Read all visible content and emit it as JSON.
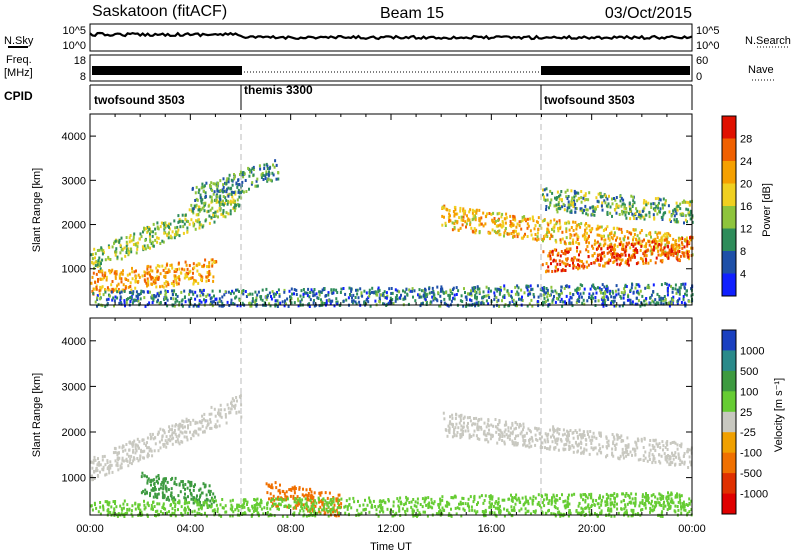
{
  "header": {
    "station": "Saskatoon (fitACF)",
    "beam": "Beam 15",
    "date": "03/Oct/2015"
  },
  "noise_panel": {
    "left_label": "N.Sky",
    "right_label": "N.Search",
    "left_ticks": [
      "10^5",
      "10^0"
    ],
    "right_ticks": [
      "10^5",
      "10^0"
    ]
  },
  "freq_panel": {
    "left_label_1": "Freq.",
    "left_label_2": "[MHz]",
    "right_label": "Nave",
    "left_ticks": [
      "18",
      "8"
    ],
    "right_ticks": [
      "60",
      "0"
    ]
  },
  "cpid_panel": {
    "label": "CPID",
    "segments": [
      {
        "name": "twofsound 3503",
        "start_hour": 0,
        "end_hour": 6
      },
      {
        "name": "themis 3300",
        "start_hour": 6,
        "end_hour": 18
      },
      {
        "name": "twofsound 3503",
        "start_hour": 18,
        "end_hour": 24
      }
    ]
  },
  "power_panel": {
    "ylabel": "Slant Range [km]",
    "yticks": [
      "4000",
      "3000",
      "2000",
      "1000"
    ],
    "colorbar_label": "Power [dB]",
    "colorbar_ticks": [
      "28",
      "24",
      "20",
      "16",
      "12",
      "8",
      "4"
    ],
    "colors": [
      "#1020ff",
      "#1e50a8",
      "#2e8c5a",
      "#8ec43c",
      "#f0d020",
      "#f5a000",
      "#f06000",
      "#e01000"
    ]
  },
  "velocity_panel": {
    "ylabel": "Slant Range [km]",
    "yticks": [
      "4000",
      "3000",
      "2000",
      "1000"
    ],
    "colorbar_label": "Velocity [m s⁻¹]",
    "colorbar_ticks": [
      "1000",
      "500",
      "100",
      "25",
      "-25",
      "-100",
      "-500",
      "-1000"
    ],
    "colors": [
      "#1a40c0",
      "#2a8a8a",
      "#3d9a40",
      "#66cc33",
      "#c8c8c0",
      "#f0a000",
      "#f07000",
      "#e03000",
      "#e00000"
    ]
  },
  "xaxis": {
    "label": "Time UT",
    "ticks": [
      "00:00",
      "04:00",
      "08:00",
      "12:00",
      "16:00",
      "20:00",
      "00:00"
    ]
  },
  "chart_data": {
    "type": "heatmap",
    "title": "Saskatoon (fitACF) Beam 15 03/Oct/2015",
    "xlabel": "Time UT",
    "ylabel": "Slant Range [km]",
    "xlim": [
      0,
      24
    ],
    "ylim": [
      180,
      4500
    ],
    "mode_changes_hours": [
      6,
      18
    ],
    "power_scatter_bands": [
      {
        "t_start": 0.0,
        "t_end": 6.0,
        "range_start": 1200,
        "range_end": 2600,
        "power_db": 14
      },
      {
        "t_start": 0.0,
        "t_end": 5.0,
        "range_start": 700,
        "range_end": 1000,
        "power_db": 22
      },
      {
        "t_start": 4.0,
        "t_end": 7.5,
        "range_start": 2600,
        "range_end": 3300,
        "power_db": 10
      },
      {
        "t_start": 14.0,
        "t_end": 24.0,
        "range_start": 2200,
        "range_end": 1500,
        "power_db": 20
      },
      {
        "t_start": 18.0,
        "t_end": 24.0,
        "range_start": 1200,
        "range_end": 1500,
        "power_db": 26
      },
      {
        "t_start": 18.0,
        "t_end": 24.0,
        "range_start": 2600,
        "range_end": 2300,
        "power_db": 12
      },
      {
        "t_start": 0.0,
        "t_end": 24.0,
        "range_start": 250,
        "range_end": 450,
        "power_db": 8
      }
    ],
    "velocity_scatter_bands": [
      {
        "t_start": 0.0,
        "t_end": 6.0,
        "range_start": 1200,
        "range_end": 2600,
        "velocity": 0
      },
      {
        "t_start": 14.0,
        "t_end": 24.0,
        "range_start": 2200,
        "range_end": 1500,
        "velocity": 0
      },
      {
        "t_start": 2.0,
        "t_end": 5.0,
        "range_start": 900,
        "range_end": 600,
        "velocity": 150
      },
      {
        "t_start": 7.0,
        "t_end": 10.0,
        "range_start": 700,
        "range_end": 400,
        "velocity": -300
      },
      {
        "t_start": 0.0,
        "t_end": 24.0,
        "range_start": 250,
        "range_end": 450,
        "velocity": 50
      }
    ]
  }
}
